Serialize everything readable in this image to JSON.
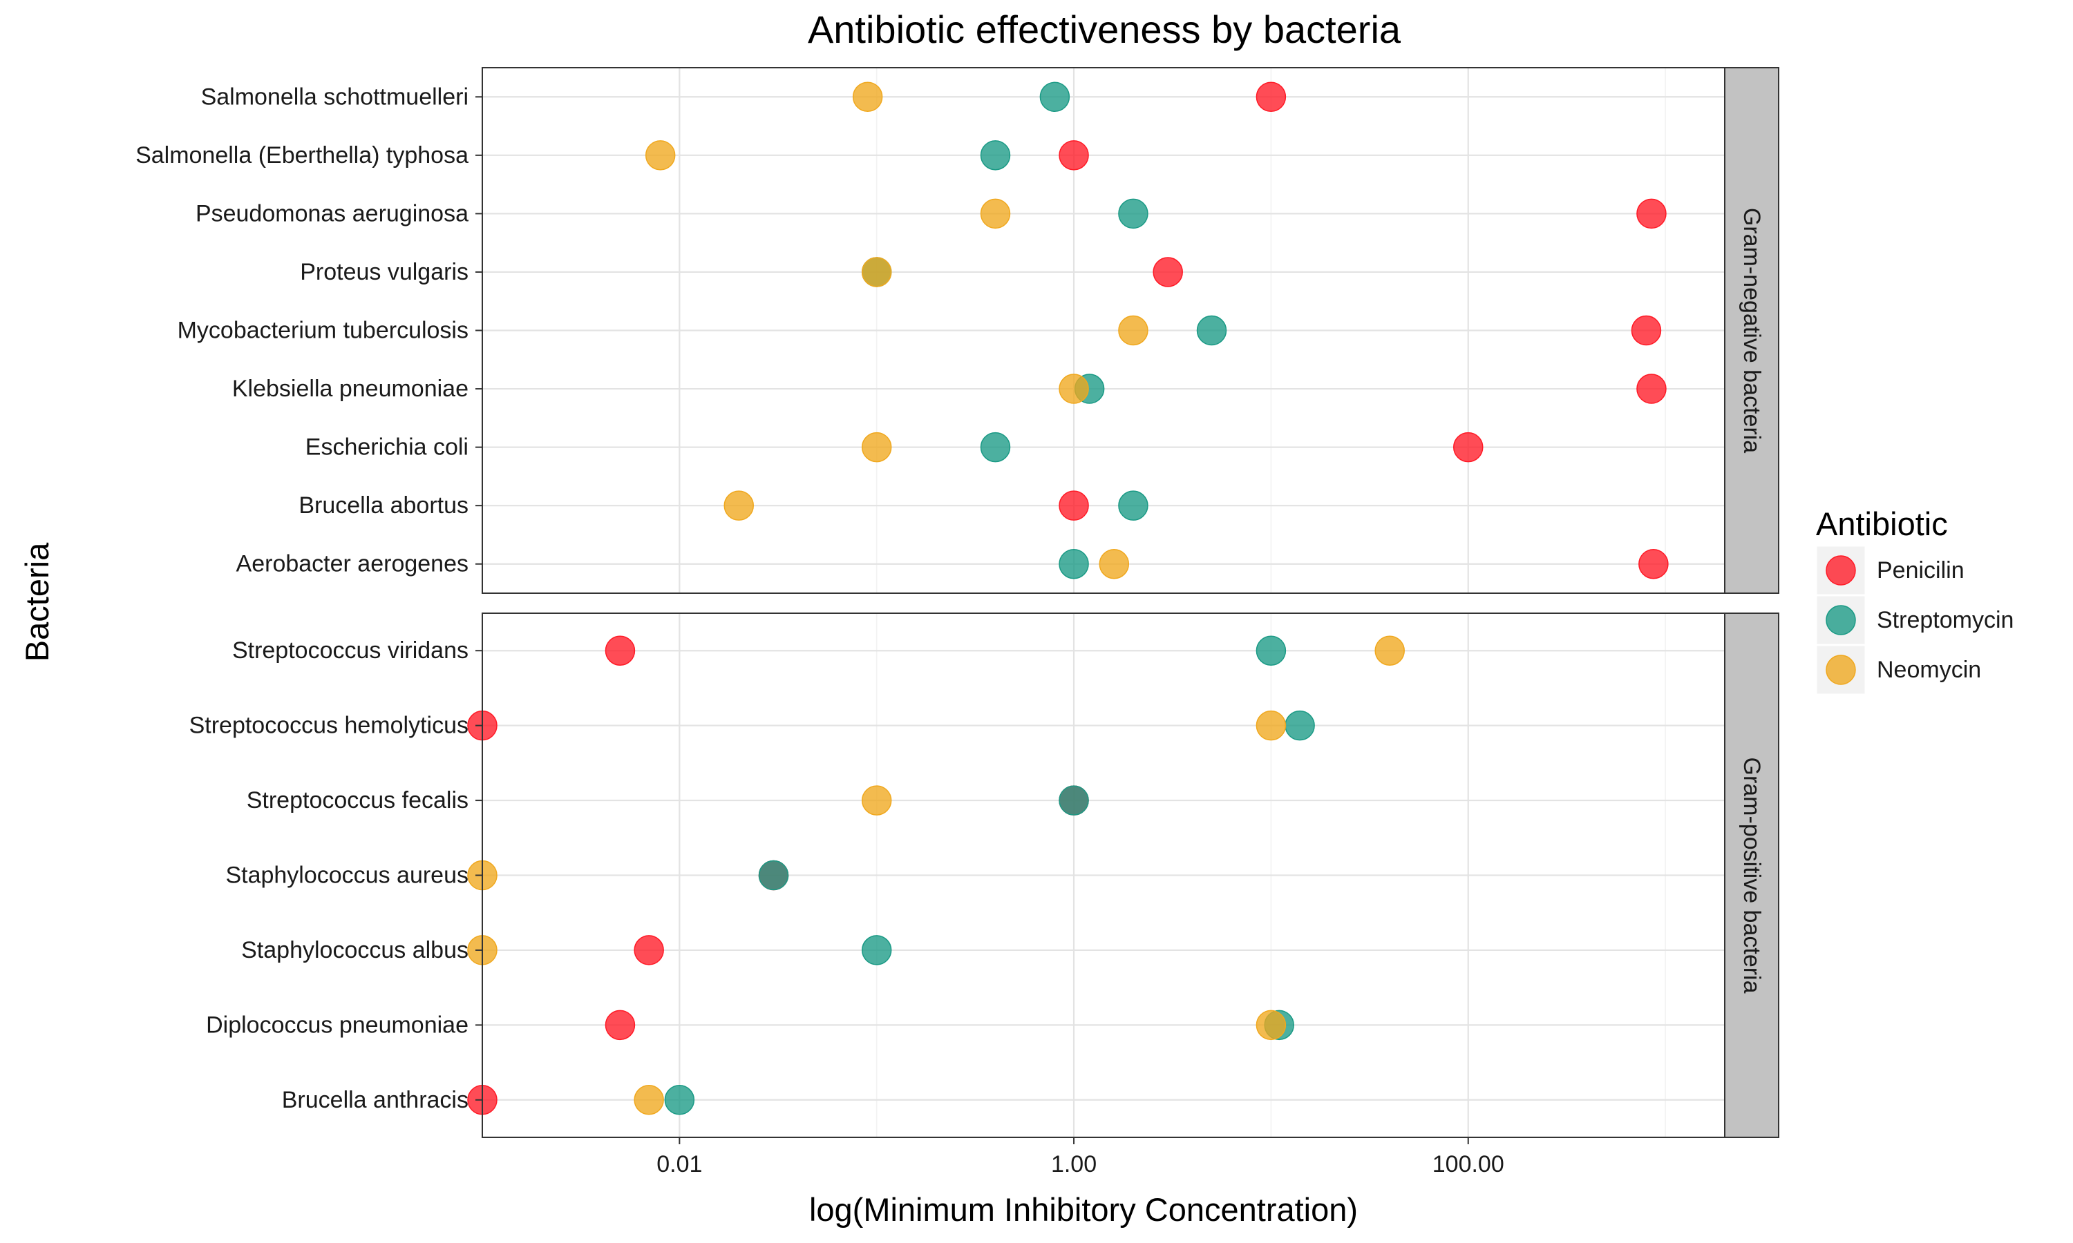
{
  "chart_data": {
    "type": "scatter",
    "title": "Antibiotic effectiveness by bacteria",
    "xlabel": "log(Minimum Inhibitory Concentration)",
    "ylabel": "Bacteria",
    "x_scale": "log10",
    "xlim": [
      0.001,
      2000
    ],
    "x_ticks": [
      {
        "value": 0.01,
        "label": "0.01"
      },
      {
        "value": 1,
        "label": "1.00"
      },
      {
        "value": 100,
        "label": "100.00"
      }
    ],
    "grid": true,
    "legend": {
      "title": "Antibiotic",
      "position": "right",
      "entries": [
        {
          "name": "Penicilin",
          "color": "#ff1a26"
        },
        {
          "name": "Streptomycin",
          "color": "#1a9a85"
        },
        {
          "name": "Neomycin",
          "color": "#f0a81e"
        }
      ]
    },
    "series": [
      {
        "name": "Penicilin",
        "color": "#ff1a26"
      },
      {
        "name": "Streptomycin",
        "color": "#1a9a85"
      },
      {
        "name": "Neomycin",
        "color": "#f0a81e"
      }
    ],
    "facets": [
      {
        "label": "Gram-negative bacteria",
        "categories": [
          "Salmonella schottmuelleri",
          "Salmonella (Eberthella) typhosa",
          "Pseudomonas aeruginosa",
          "Proteus vulgaris",
          "Mycobacterium tuberculosis",
          "Klebsiella pneumoniae",
          "Escherichia coli",
          "Brucella abortus",
          "Aerobacter aerogenes"
        ],
        "points": [
          {
            "category": "Salmonella schottmuelleri",
            "Penicilin": 10,
            "Streptomycin": 0.8,
            "Neomycin": 0.09
          },
          {
            "category": "Salmonella (Eberthella) typhosa",
            "Penicilin": 1,
            "Streptomycin": 0.4,
            "Neomycin": 0.008
          },
          {
            "category": "Pseudomonas aeruginosa",
            "Penicilin": 850,
            "Streptomycin": 2,
            "Neomycin": 0.4
          },
          {
            "category": "Proteus vulgaris",
            "Penicilin": 3,
            "Streptomycin": 0.1,
            "Neomycin": 0.1
          },
          {
            "category": "Mycobacterium tuberculosis",
            "Penicilin": 800,
            "Streptomycin": 5,
            "Neomycin": 2
          },
          {
            "category": "Klebsiella pneumoniae",
            "Penicilin": 850,
            "Streptomycin": 1.2,
            "Neomycin": 1
          },
          {
            "category": "Escherichia coli",
            "Penicilin": 100,
            "Streptomycin": 0.4,
            "Neomycin": 0.1
          },
          {
            "category": "Brucella abortus",
            "Penicilin": 1,
            "Streptomycin": 2,
            "Neomycin": 0.02
          },
          {
            "category": "Aerobacter aerogenes",
            "Penicilin": 870,
            "Streptomycin": 1,
            "Neomycin": 1.6
          }
        ]
      },
      {
        "label": "Gram-positive bacteria",
        "categories": [
          "Streptococcus viridans",
          "Streptococcus hemolyticus",
          "Streptococcus fecalis",
          "Staphylococcus aureus",
          "Staphylococcus albus",
          "Diplococcus pneumoniae",
          "Brucella anthracis"
        ],
        "points": [
          {
            "category": "Streptococcus viridans",
            "Penicilin": 0.005,
            "Streptomycin": 10,
            "Neomycin": 40
          },
          {
            "category": "Streptococcus hemolyticus",
            "Penicilin": 0.001,
            "Streptomycin": 14,
            "Neomycin": 10
          },
          {
            "category": "Streptococcus fecalis",
            "Penicilin": 1,
            "Streptomycin": 1,
            "Neomycin": 0.1
          },
          {
            "category": "Staphylococcus aureus",
            "Penicilin": 0.03,
            "Streptomycin": 0.03,
            "Neomycin": 0.001
          },
          {
            "category": "Staphylococcus albus",
            "Penicilin": 0.007,
            "Streptomycin": 0.1,
            "Neomycin": 0.001
          },
          {
            "category": "Diplococcus pneumoniae",
            "Penicilin": 0.005,
            "Streptomycin": 11,
            "Neomycin": 10
          },
          {
            "category": "Brucella anthracis",
            "Penicilin": 0.001,
            "Streptomycin": 0.01,
            "Neomycin": 0.007
          }
        ]
      }
    ]
  }
}
